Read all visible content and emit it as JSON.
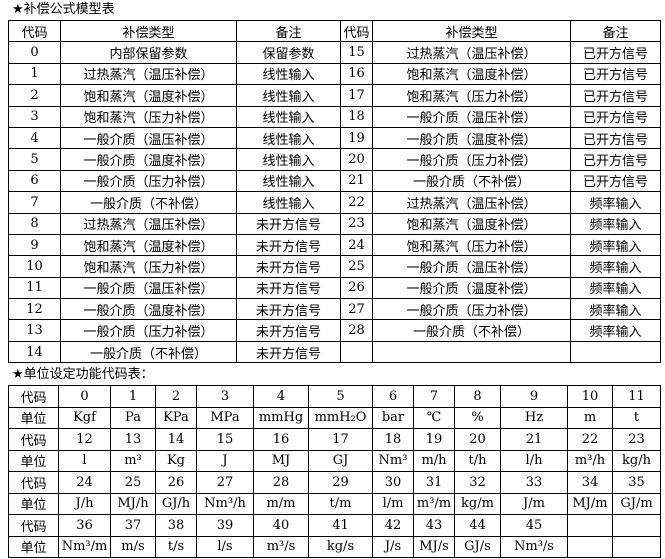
{
  "title1": "★补偿公式模型表",
  "t1_headers": [
    "代码",
    "补偿类型",
    "备注",
    "代码",
    "补偿类型",
    "备注"
  ],
  "t1_rows": [
    [
      "0",
      "内部保留参数",
      "保留参数",
      "15",
      "过热蒸汽（温压补偿）",
      "已开方信号"
    ],
    [
      "1",
      "过热蒸汽（温压补偿）",
      "线性输入",
      "16",
      "饱和蒸汽（温度补偿）",
      "已开方信号"
    ],
    [
      "2",
      "饱和蒸汽（温度补偿）",
      "线性输入",
      "17",
      "饱和蒸汽（压力补偿）",
      "已开方信号"
    ],
    [
      "3",
      "饱和蒸汽（压力补偿）",
      "线性输入",
      "18",
      "一般介质（温压补偿）",
      "已开方信号"
    ],
    [
      "4",
      "一般介质（温压补偿）",
      "线性输入",
      "19",
      "一般介质（温度补偿）",
      "已开方信号"
    ],
    [
      "5",
      "一般介质（温度补偿）",
      "线性输入",
      "20",
      "一般介质（压力补偿）",
      "已开方信号"
    ],
    [
      "6",
      "一般介质（压力补偿）",
      "线性输入",
      "21",
      "一般介质（不补偿）",
      "已开方信号"
    ],
    [
      "7",
      "一般介质（不补偿）",
      "线性输入",
      "22",
      "过热蒸汽（温压补偿）",
      "频率输入"
    ],
    [
      "8",
      "过热蒸汽（温压补偿）",
      "未开方信号",
      "23",
      "饱和蒸汽（温度补偿）",
      "频率输入"
    ],
    [
      "9",
      "饱和蒸汽（温度补偿）",
      "未开方信号",
      "24",
      "饱和蒸汽（压力补偿）",
      "频率输入"
    ],
    [
      "10",
      "饱和蒸汽（压力补偿）",
      "未开方信号",
      "25",
      "一般介质（温压补偿）",
      "频率输入"
    ],
    [
      "11",
      "一般介质（温压补偿）",
      "未开方信号",
      "26",
      "一般介质（温度补偿）",
      "频率输入"
    ],
    [
      "12",
      "一般介质（温度补偿）",
      "未开方信号",
      "27",
      "一般介质（压力补偿）",
      "频率输入"
    ],
    [
      "13",
      "一般介质（压力补偿）",
      "未开方信号",
      "28",
      "一般介质（不补偿）",
      "频率输入"
    ],
    [
      "14",
      "一般介质（不补偿）",
      "未开方信号",
      "",
      "",
      ""
    ]
  ],
  "title2": "★单位设定功能代码表：",
  "code_label": "代码",
  "unit_label": "单位",
  "t2_groups": [
    {
      "codes": [
        "0",
        "1",
        "2",
        "3",
        "4",
        "5",
        "6",
        "7",
        "8",
        "9",
        "10",
        "11"
      ],
      "units": [
        "Kgf",
        "Pa",
        "KPa",
        "MPa",
        "mmHg",
        "mmH₂O",
        "bar",
        "℃",
        "%",
        "Hz",
        "m",
        "t"
      ]
    },
    {
      "codes": [
        "12",
        "13",
        "14",
        "15",
        "16",
        "17",
        "18",
        "19",
        "20",
        "21",
        "22",
        "23"
      ],
      "units": [
        "l",
        "m³",
        "Kg",
        "J",
        "MJ",
        "GJ",
        "Nm³",
        "m/h",
        "t/h",
        "l/h",
        "m³/h",
        "kg/h"
      ]
    },
    {
      "codes": [
        "24",
        "25",
        "26",
        "27",
        "28",
        "29",
        "30",
        "31",
        "32",
        "33",
        "34",
        "35"
      ],
      "units": [
        "J/h",
        "MJ/h",
        "GJ/h",
        "Nm³/h",
        "m/m",
        "t/m",
        "l/m",
        "m³/m",
        "kg/m",
        "J/m",
        "MJ/m",
        "GJ/m"
      ]
    },
    {
      "codes": [
        "36",
        "37",
        "38",
        "39",
        "40",
        "41",
        "42",
        "43",
        "44",
        "45",
        "",
        ""
      ],
      "units": [
        "Nm³/m",
        "m/s",
        "t/s",
        "l/s",
        "m³/s",
        "kg/s",
        "J/s",
        "MJ/s",
        "GJ/s",
        "Nm³/s",
        "",
        ""
      ]
    }
  ]
}
